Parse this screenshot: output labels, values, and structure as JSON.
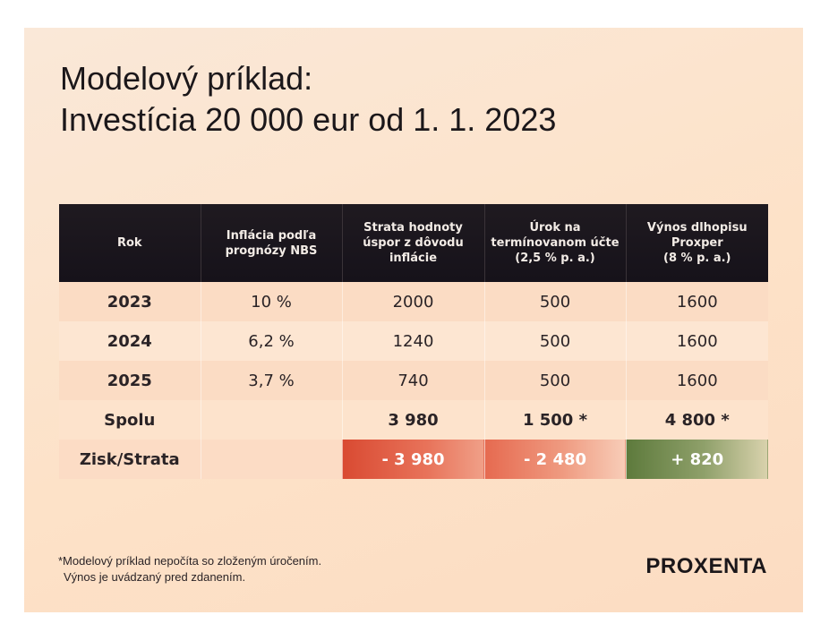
{
  "title": "Modelový príklad:",
  "subtitle": "Investícia 20 000 eur od 1. 1. 2023",
  "table": {
    "headers": [
      [
        "Rok"
      ],
      [
        "Inflácia podľa",
        "prognózy NBS"
      ],
      [
        "Strata hodnoty",
        "úspor z dôvodu",
        "inflácie"
      ],
      [
        "Úrok na",
        "termínovanom účte",
        "(2,5 % p. a.)"
      ],
      [
        "Výnos dlhopisu",
        "Proxper",
        "(8 % p. a.)"
      ]
    ],
    "rows": [
      [
        "2023",
        "10 %",
        "2000",
        "500",
        "1600"
      ],
      [
        "2024",
        "6,2 %",
        "1240",
        "500",
        "1600"
      ],
      [
        "2025",
        "3,7 %",
        "740",
        "500",
        "1600"
      ]
    ],
    "total": [
      "Spolu",
      "",
      "3 980",
      "1 500 *",
      "4 800 *"
    ],
    "result": [
      "Zisk/Strata",
      "",
      "- 3 980",
      "- 2 480",
      "+ 820"
    ],
    "colors": {
      "header_bg": "#1c171d",
      "loss": "#d94a32",
      "gain": "#5d7a3c"
    }
  },
  "footnote": {
    "line1": "*Modelový príklad nepočíta so zloženým úročením.",
    "line2": "Výnos je uvádzaný pred zdanením."
  },
  "logo": "PROXENTA"
}
